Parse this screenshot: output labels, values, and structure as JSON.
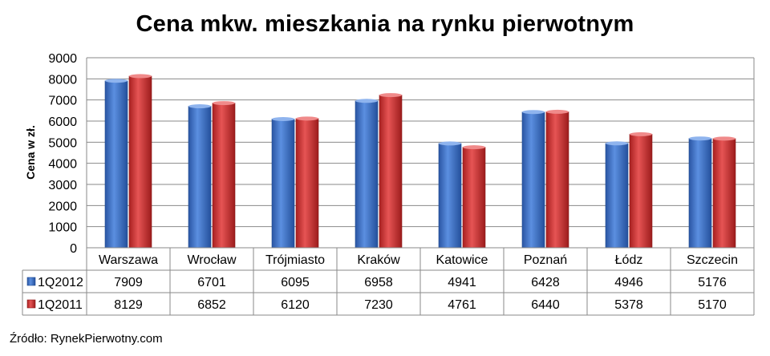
{
  "chart_data": {
    "type": "bar",
    "title": "Cena mkw. mieszkania na rynku pierwotnym",
    "ylabel": "Cena w zł.",
    "xlabel": "",
    "ylim": [
      0,
      9000
    ],
    "yticks": [
      0,
      1000,
      2000,
      3000,
      4000,
      5000,
      6000,
      7000,
      8000,
      9000
    ],
    "grid": true,
    "legend": "data-table-left",
    "categories": [
      "Warszawa",
      "Wrocław",
      "Trójmiasto",
      "Kraków",
      "Katowice",
      "Poznań",
      "Łódz",
      "Szczecin"
    ],
    "series": [
      {
        "name": "1Q2012",
        "color": "#3f73c8",
        "values": [
          7909,
          6701,
          6095,
          6958,
          4941,
          6428,
          4946,
          5176
        ]
      },
      {
        "name": "1Q2011",
        "color": "#d33636",
        "values": [
          8129,
          6852,
          6120,
          7230,
          4761,
          6440,
          5378,
          5170
        ]
      }
    ]
  },
  "source": "Źródło: RynekPierwotny.com"
}
